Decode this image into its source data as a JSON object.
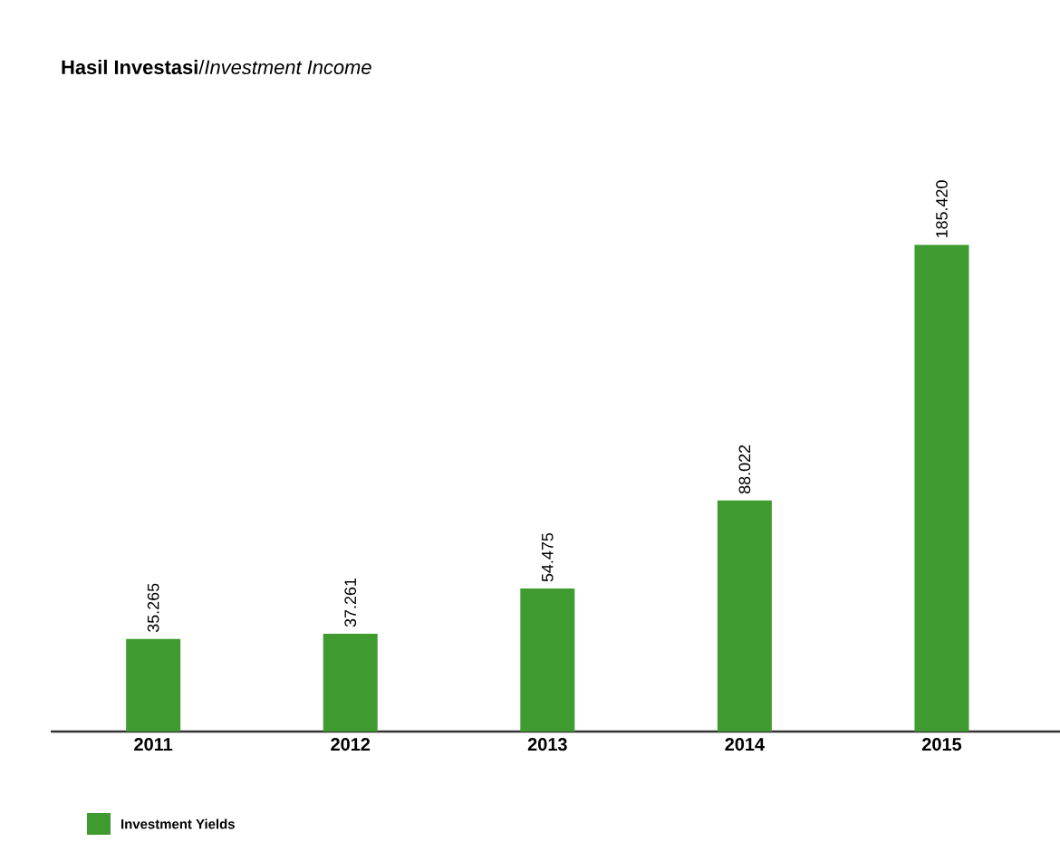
{
  "chart_data": {
    "type": "bar",
    "title": "**Hasil Investasi**/*Investment Income*",
    "categories": [
      "2011",
      "2012",
      "2013",
      "2014",
      "2015"
    ],
    "series": [
      {
        "name": "Investment Yields",
        "color": "#3f9a2f",
        "values": [
          35.265,
          37.261,
          54.475,
          88.022,
          185.42
        ],
        "value_labels": [
          "35.265",
          "37.261",
          "54.475",
          "88.022",
          "185.420"
        ]
      }
    ],
    "tick_labels": "x",
    "legend": "bottom left"
  }
}
